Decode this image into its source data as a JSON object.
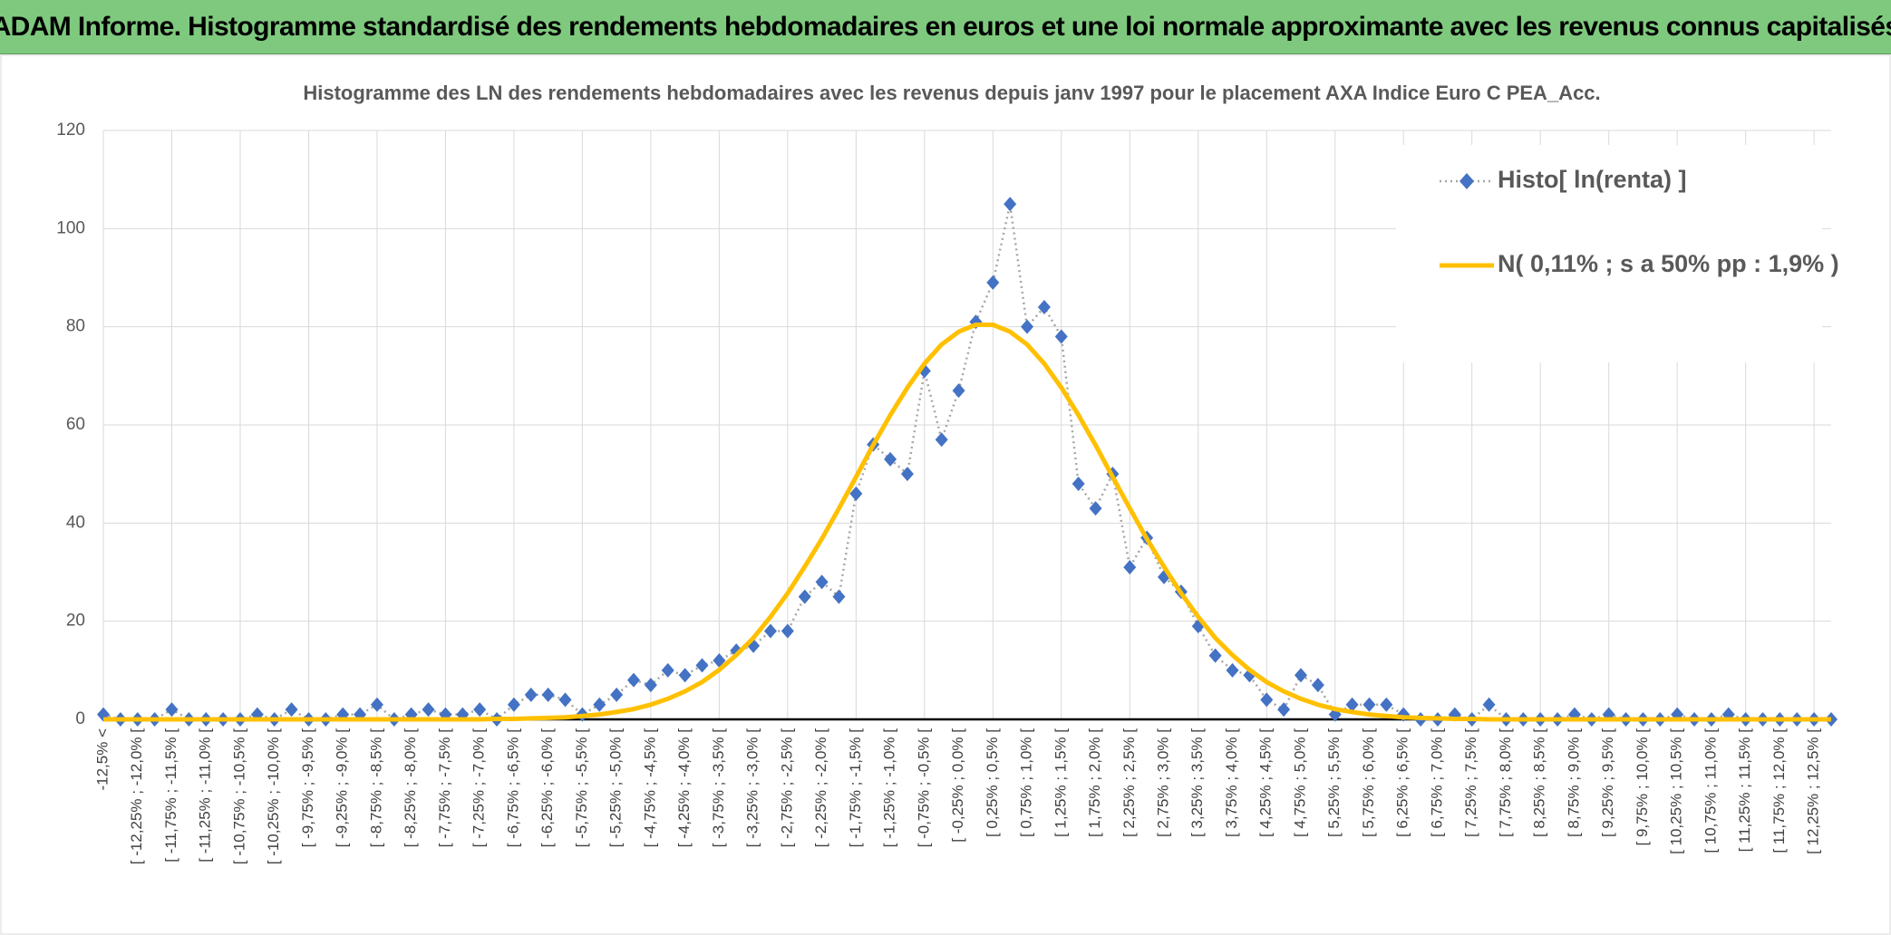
{
  "page_title": "ADAM Informe. Histogramme standardisé des rendements hebdomadaires en euros et une loi normale approximante avec les revenus connus capitalisés",
  "chart_data": {
    "type": "line",
    "title": "Histogramme des LN des rendements hebdomadaires avec les revenus depuis janv 1997 pour le placement AXA Indice Euro C PEA_Acc.",
    "categories": [
      "-12,5% <",
      null,
      "[ -12,25% ; -12,0% [",
      null,
      "[ -11,75% ; -11,5% [",
      null,
      "[ -11,25% ; -11,0% [",
      null,
      "[ -10,75% ; -10,5% [",
      null,
      "[ -10,25% ; -10,0% [",
      null,
      "[ -9,75% ; -9,5% [",
      null,
      "[ -9,25% ; -9,0% [",
      null,
      "[ -8,75% ; -8,5% [",
      null,
      "[ -8,25% ; -8,0% [",
      null,
      "[ -7,75% ; -7,5% [",
      null,
      "[ -7,25% ; -7,0% [",
      null,
      "[ -6,75% ; -6,5% [",
      null,
      "[ -6,25% ; -6,0% [",
      null,
      "[ -5,75% ; -5,5% [",
      null,
      "[ -5,25% ; -5,0% [",
      null,
      "[ -4,75% ; -4,5% [",
      null,
      "[ -4,25% ; -4,0% [",
      null,
      "[ -3,75% ; -3,5% [",
      null,
      "[ -3,25% ; -3,0% [",
      null,
      "[ -2,75% ; -2,5% [",
      null,
      "[ -2,25% ; -2,0% [",
      null,
      "[ -1,75% ; -1,5% [",
      null,
      "[ -1,25% ; -1,0% [",
      null,
      "[ -0,75% ; -0,5% [",
      null,
      "[ -0,25% ; 0,0% [",
      null,
      "[ 0,25% ; 0,5% [",
      null,
      "[ 0,75% ; 1,0% [",
      null,
      "[ 1,25% ; 1,5% [",
      null,
      "[ 1,75% ; 2,0% [",
      null,
      "[ 2,25% ; 2,5% [",
      null,
      "[ 2,75% ; 3,0% [",
      null,
      "[ 3,25% ; 3,5% [",
      null,
      "[ 3,75% ; 4,0% [",
      null,
      "[ 4,25% ; 4,5% [",
      null,
      "[ 4,75% ; 5,0% [",
      null,
      "[ 5,25% ; 5,5% [",
      null,
      "[ 5,75% ; 6,0% [",
      null,
      "[ 6,25% ; 6,5% [",
      null,
      "[ 6,75% ; 7,0% [",
      null,
      "[ 7,25% ; 7,5% [",
      null,
      "[ 7,75% ; 8,0% [",
      null,
      "[ 8,25% ; 8,5% [",
      null,
      "[ 8,75% ; 9,0% [",
      null,
      "[ 9,25% ; 9,5% [",
      null,
      "[ 9,75% ; 10,0% [",
      null,
      "[ 10,25% ; 10,5% [",
      null,
      "[ 10,75% ; 11,0% [",
      null,
      "[ 11,25% ; 11,5% [",
      null,
      "[ 11,75% ; 12,0% [",
      null,
      "[ 12,25% ; 12,5% [",
      null
    ],
    "series": [
      {
        "name": "Histo[ ln(renta) ]",
        "color": "#4472c4",
        "values": [
          1,
          0,
          0,
          0,
          2,
          0,
          0,
          0,
          0,
          1,
          0,
          2,
          0,
          0,
          1,
          1,
          3,
          0,
          1,
          2,
          1,
          1,
          2,
          0,
          3,
          5,
          5,
          4,
          1,
          3,
          5,
          8,
          7,
          10,
          9,
          11,
          12,
          14,
          15,
          18,
          18,
          25,
          28,
          25,
          46,
          56,
          53,
          50,
          71,
          57,
          67,
          81,
          89,
          105,
          80,
          84,
          78,
          48,
          43,
          50,
          31,
          37,
          29,
          26,
          19,
          13,
          10,
          9,
          4,
          2,
          9,
          7,
          1,
          3,
          3,
          3,
          1,
          0,
          0,
          1,
          0,
          3,
          0,
          0,
          0,
          0,
          1,
          0,
          1,
          0,
          0,
          0,
          1,
          0,
          0,
          1,
          0,
          0,
          0,
          0,
          0,
          0
        ]
      },
      {
        "name": "N( 0,11% ; s a 50% pp : 1,9% )",
        "color": "#ffc000",
        "values": [
          0,
          0,
          0,
          0,
          0,
          0,
          0,
          0,
          0,
          0,
          0,
          0,
          0,
          0,
          0,
          0,
          0,
          0,
          0,
          0,
          0,
          0,
          0,
          0.1,
          0.1,
          0.2,
          0.3,
          0.4,
          0.7,
          1.0,
          1.5,
          2.1,
          3.0,
          4.2,
          5.7,
          7.6,
          10.1,
          13.1,
          16.6,
          20.9,
          25.7,
          31.1,
          36.8,
          43.0,
          49.4,
          55.9,
          62.0,
          67.6,
          72.5,
          76.4,
          79.0,
          80.4,
          80.4,
          79.0,
          76.4,
          72.5,
          67.6,
          62.0,
          55.9,
          49.4,
          43.0,
          36.8,
          31.1,
          25.7,
          20.9,
          16.6,
          13.1,
          10.1,
          7.6,
          5.7,
          4.2,
          3.0,
          2.1,
          1.5,
          1.0,
          0.7,
          0.4,
          0.3,
          0.2,
          0.1,
          0.1,
          0,
          0,
          0,
          0,
          0,
          0,
          0,
          0,
          0,
          0,
          0,
          0,
          0,
          0,
          0,
          0,
          0,
          0,
          0,
          0,
          0
        ]
      }
    ],
    "ylim": [
      0,
      120
    ],
    "yticks": [
      0,
      20,
      40,
      60,
      80,
      100,
      120
    ],
    "grid": true,
    "legend": "top-right"
  }
}
